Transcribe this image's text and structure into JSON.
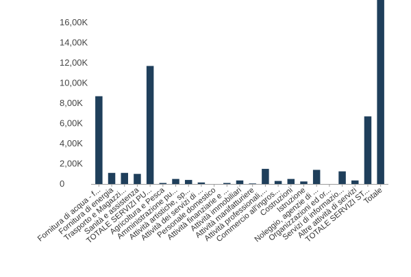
{
  "chart_data": {
    "type": "bar",
    "title": "",
    "xlabel": "",
    "ylabel": "",
    "ylim": [
      0,
      18000
    ],
    "grid": false,
    "legend": "none",
    "bar_color": "#1f3f5b",
    "y_ticks": [
      {
        "value": 0,
        "label": "0"
      },
      {
        "value": 2000,
        "label": "2,00K"
      },
      {
        "value": 4000,
        "label": "4,00K"
      },
      {
        "value": 6000,
        "label": "6,00K"
      },
      {
        "value": 8000,
        "label": "8,00K"
      },
      {
        "value": 10000,
        "label": "10,00K"
      },
      {
        "value": 12000,
        "label": "12,00K"
      },
      {
        "value": 14000,
        "label": "14,00K"
      },
      {
        "value": 16000,
        "label": "16,00K"
      }
    ],
    "categories": [
      "Fornitura di acqua - f...",
      "Fornitura di energia",
      "Trasporto e Magazzi...",
      "Sanità e assistenza",
      "TOTALE SERVIZI PU...",
      "Agricoltura e Pesca",
      "Amministrazione pu...",
      "Attività artistiche, sp...",
      "Attività dei servizi di ...",
      "Personale domestico",
      "Attività finanziarie e ...",
      "Attività immobiliari",
      "Attività manifatturiere",
      "Attività professionali,...",
      "Commercio all'ingros...",
      "Costruzioni",
      "Istruzione",
      "Noleggio, agenzie di ...",
      "Organizzazioni ed or...",
      "Servizi di informazio...",
      "Altre attività di servizi",
      "TOTALE SERVIZI ST...",
      "Totale"
    ],
    "values": [
      8700,
      1100,
      1100,
      1000,
      11700,
      100,
      500,
      400,
      150,
      0,
      100,
      350,
      50,
      1500,
      300,
      500,
      250,
      1400,
      0,
      1250,
      350,
      6700,
      18500
    ]
  }
}
